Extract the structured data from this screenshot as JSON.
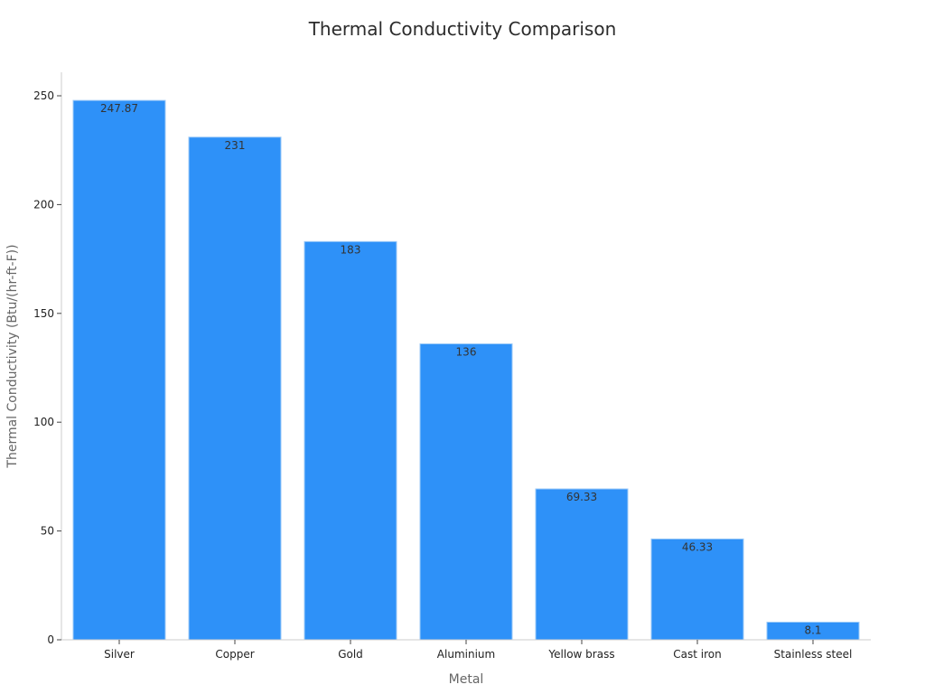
{
  "chart_data": {
    "type": "bar",
    "title": "Thermal Conductivity Comparison",
    "xlabel": "Metal",
    "ylabel": "Thermal Conductivity (Btu/(hr-ft-F))",
    "categories": [
      "Silver",
      "Copper",
      "Gold",
      "Aluminium",
      "Yellow brass",
      "Cast iron",
      "Stainless steel"
    ],
    "values": [
      247.87,
      231,
      183,
      136,
      69.33,
      46.33,
      8.1
    ],
    "data_labels": [
      "247.87",
      "231",
      "183",
      "136",
      "69.33",
      "46.33",
      "8.1"
    ],
    "ylim": [
      0,
      260
    ],
    "yticks": [
      0,
      50,
      100,
      150,
      200,
      250
    ],
    "grid": false,
    "bar_color": "#2e91f8"
  }
}
